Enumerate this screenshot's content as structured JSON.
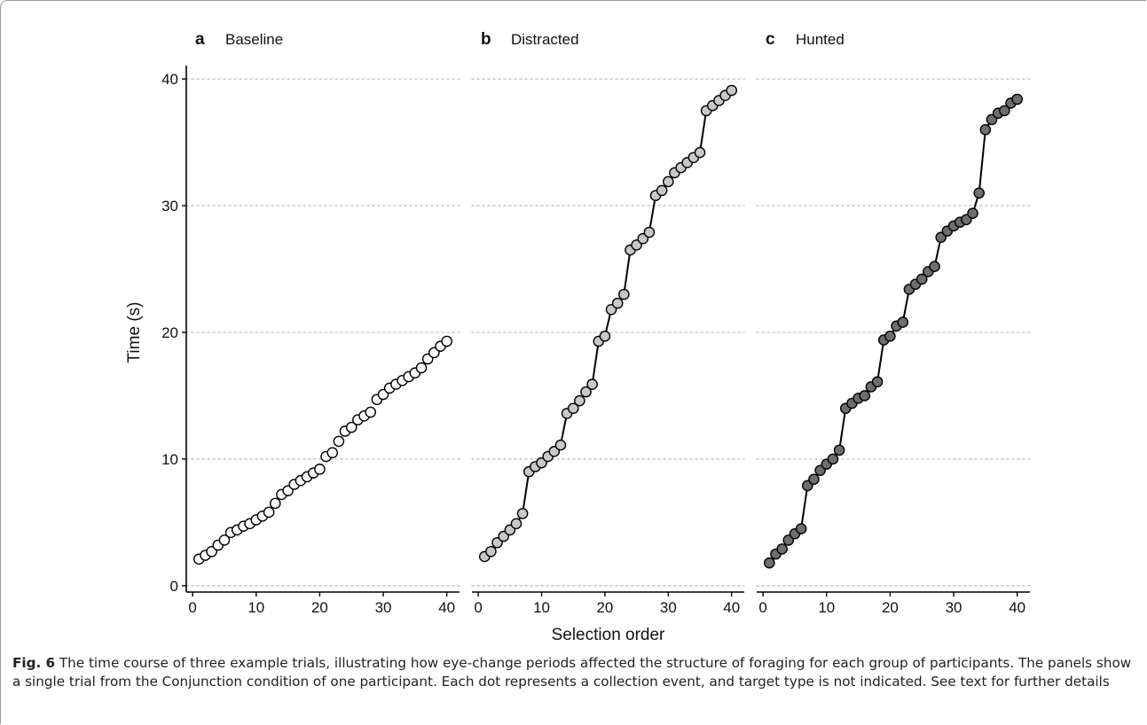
{
  "chart_data": {
    "type": "scatter",
    "ylabel": "Time (s)",
    "xlabel": "Selection order",
    "xticks": [
      0,
      10,
      20,
      30,
      40
    ],
    "yticks": [
      0,
      10,
      20,
      30,
      40
    ],
    "xlim": [
      -1,
      42
    ],
    "ylim": [
      -0.5,
      40.5
    ],
    "grid": "horizontal dotted",
    "x": [
      1,
      2,
      3,
      4,
      5,
      6,
      7,
      8,
      9,
      10,
      11,
      12,
      13,
      14,
      15,
      16,
      17,
      18,
      19,
      20,
      21,
      22,
      23,
      24,
      25,
      26,
      27,
      28,
      29,
      30,
      31,
      32,
      33,
      34,
      35,
      36,
      37,
      38,
      39,
      40
    ],
    "panels": [
      {
        "letter": "a",
        "title": "Baseline",
        "fill": "#ffffff",
        "connected": false,
        "values": [
          2.1,
          2.4,
          2.7,
          3.2,
          3.6,
          4.2,
          4.4,
          4.7,
          4.9,
          5.2,
          5.5,
          5.8,
          6.5,
          7.2,
          7.5,
          8.0,
          8.3,
          8.6,
          8.9,
          9.2,
          10.2,
          10.5,
          11.4,
          12.2,
          12.5,
          13.1,
          13.4,
          13.7,
          14.7,
          15.1,
          15.6,
          15.9,
          16.2,
          16.5,
          16.8,
          17.2,
          17.9,
          18.4,
          18.9,
          19.3
        ]
      },
      {
        "letter": "b",
        "title": "Distracted",
        "fill": "#c8c8c8",
        "connected": true,
        "values": [
          2.3,
          2.7,
          3.4,
          3.9,
          4.4,
          4.9,
          5.7,
          9.0,
          9.4,
          9.7,
          10.2,
          10.6,
          11.1,
          13.6,
          14.0,
          14.6,
          15.3,
          15.9,
          19.3,
          19.7,
          21.8,
          22.3,
          23.0,
          26.5,
          26.9,
          27.4,
          27.9,
          30.8,
          31.2,
          31.9,
          32.6,
          33.0,
          33.4,
          33.8,
          34.2,
          37.5,
          37.9,
          38.3,
          38.7,
          39.1
        ]
      },
      {
        "letter": "c",
        "title": "Hunted",
        "fill": "#6e6e6e",
        "connected": true,
        "values": [
          1.8,
          2.5,
          2.9,
          3.6,
          4.1,
          4.5,
          7.9,
          8.4,
          9.1,
          9.6,
          10.0,
          10.7,
          14.0,
          14.4,
          14.8,
          15.0,
          15.7,
          16.1,
          19.4,
          19.7,
          20.5,
          20.8,
          23.4,
          23.8,
          24.2,
          24.8,
          25.2,
          27.5,
          28.0,
          28.4,
          28.7,
          28.9,
          29.4,
          31.0,
          36.0,
          36.8,
          37.3,
          37.5,
          38.1,
          38.4
        ]
      }
    ]
  },
  "caption": {
    "lead": "Fig. 6",
    "text": "The time course of three example trials, illustrating how eye-change periods affected the structure of foraging for each group of participants. The panels show a single trial from the Conjunction condition of one participant. Each dot represents a collection event, and target type is not indicated. See text for further details"
  }
}
